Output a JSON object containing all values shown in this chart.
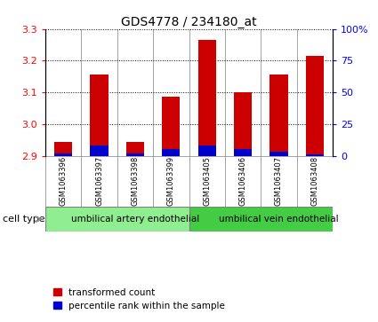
{
  "title": "GDS4778 / 234180_at",
  "samples": [
    "GSM1063396",
    "GSM1063397",
    "GSM1063398",
    "GSM1063399",
    "GSM1063405",
    "GSM1063406",
    "GSM1063407",
    "GSM1063408"
  ],
  "transformed_count": [
    2.945,
    3.155,
    2.945,
    3.085,
    3.265,
    3.1,
    3.155,
    3.215
  ],
  "percentile_rank": [
    2,
    8,
    2,
    5,
    8,
    5,
    3,
    1
  ],
  "ylim_left": [
    2.9,
    3.3
  ],
  "ylim_right": [
    0,
    100
  ],
  "yticks_left": [
    2.9,
    3.0,
    3.1,
    3.2,
    3.3
  ],
  "yticks_right": [
    0,
    25,
    50,
    75,
    100
  ],
  "bar_color_red": "#cc0000",
  "bar_color_blue": "#0000cc",
  "groups": [
    {
      "label": "umbilical artery endothelial",
      "start": 0,
      "end": 4,
      "color": "#90ee90"
    },
    {
      "label": "umbilical vein endothelial",
      "start": 4,
      "end": 8,
      "color": "#44cc44"
    }
  ],
  "cell_type_label": "cell type",
  "legend_red": "transformed count",
  "legend_blue": "percentile rank within the sample",
  "background_color": "#ffffff",
  "sample_box_color": "#c8c8c8",
  "grid_linestyle": ":",
  "grid_color": "#000000"
}
